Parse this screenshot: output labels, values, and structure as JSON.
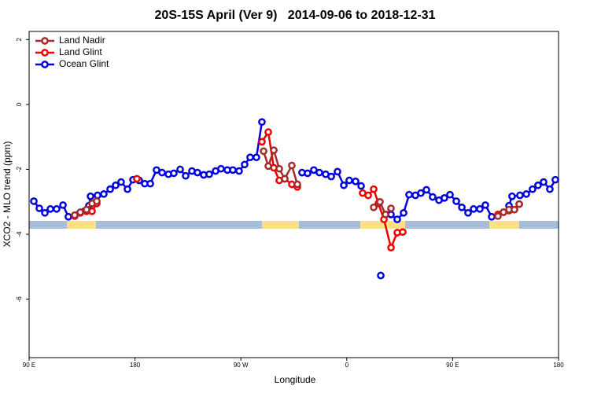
{
  "chart_data": {
    "type": "line",
    "title": "20S-15S April (Ver 9)   2014-09-06 to 2018-12-31",
    "x_label": "Longitude",
    "y_label": "XCO2 - MLO trend (ppm)",
    "xlim": [
      90,
      540
    ],
    "ylim": [
      -7.8,
      2.25
    ],
    "xticks": [
      {
        "value": 90,
        "label": "90 E"
      },
      {
        "value": 180,
        "label": "180"
      },
      {
        "value": 270,
        "label": "90 W"
      },
      {
        "value": 360,
        "label": "0"
      },
      {
        "value": 450,
        "label": "90 E"
      },
      {
        "value": 540,
        "label": "180"
      }
    ],
    "yticks": [
      2,
      0,
      -2,
      -4,
      -6
    ],
    "legend": "upper left",
    "series": [
      {
        "name": "Land Nadir",
        "color": "#a52a2a",
        "x": [
          128.8,
          133.5,
          138.8,
          143.5,
          147.5,
          null,
          289.3,
          293.3,
          298.0,
          302.6,
          307.3,
          313.3,
          318.0,
          null,
          382.9,
          388.2,
          392.9,
          397.6,
          null,
          488.5,
          493.2,
          497.9,
          502.5,
          506.6
        ],
        "values": [
          -3.41,
          -3.32,
          -3.24,
          -3.05,
          -2.98,
          null,
          -1.44,
          -1.9,
          -1.41,
          -1.98,
          -2.29,
          -1.88,
          -2.46,
          null,
          -3.17,
          -3.0,
          -3.39,
          -3.2,
          null,
          -3.44,
          -3.32,
          -3.24,
          -3.24,
          -3.07
        ]
      },
      {
        "name": "Land Glint",
        "color": "#ee0000",
        "x": [
          128.8,
          133.5,
          138.8,
          143.5,
          147.5,
          null,
          181.6,
          null,
          287.9,
          293.3,
          298.0,
          302.6,
          307.3,
          313.3,
          318.0,
          null,
          373.5,
          378.2,
          382.9,
          386.9,
          391.6,
          397.6,
          402.9,
          407.6,
          null,
          488.5,
          493.2,
          497.9,
          502.5,
          506.6
        ],
        "values": [
          -3.44,
          -3.34,
          -3.29,
          -3.29,
          -3.05,
          null,
          -2.29,
          null,
          -1.15,
          -0.85,
          -1.95,
          -2.34,
          -2.29,
          -2.46,
          -2.54,
          null,
          -2.73,
          -2.8,
          -2.61,
          -3.05,
          -3.54,
          -4.41,
          -3.95,
          -3.93,
          null,
          -3.39,
          -3.32,
          -3.27,
          -3.24,
          -3.07
        ]
      },
      {
        "name": "Ocean Glint",
        "color": "#0000dd",
        "x": [
          94.0,
          98.7,
          103.4,
          108.1,
          113.4,
          118.8,
          123.4,
          140.8,
          142.2,
          148.2,
          153.5,
          158.9,
          163.6,
          168.2,
          173.6,
          178.3,
          183.6,
          188.3,
          193.0,
          198.3,
          203.0,
          208.4,
          213.0,
          218.4,
          223.1,
          228.4,
          233.1,
          238.4,
          243.1,
          248.5,
          253.1,
          258.5,
          263.2,
          268.5,
          273.2,
          277.9,
          283.2,
          287.9,
          null,
          322.0,
          326.7,
          332.0,
          336.7,
          342.1,
          346.8,
          352.1,
          357.5,
          362.1,
          367.5,
          372.2,
          null,
          388.9,
          null,
          397.6,
          402.9,
          408.3,
          413.0,
          418.3,
          423.0,
          427.7,
          433.0,
          438.4,
          443.0,
          447.7,
          453.1,
          457.8,
          463.1,
          467.8,
          473.1,
          477.8,
          483.2,
          null,
          497.9,
          500.5,
          507.2,
          512.6,
          517.9,
          522.6,
          527.3,
          532.6,
          537.3
        ],
        "values": [
          -2.98,
          -3.2,
          -3.34,
          -3.22,
          -3.22,
          -3.1,
          -3.46,
          -3.12,
          -2.83,
          -2.8,
          -2.76,
          -2.61,
          -2.49,
          -2.39,
          -2.61,
          -2.32,
          -2.34,
          -2.44,
          -2.44,
          -2.02,
          -2.1,
          -2.15,
          -2.12,
          -2.0,
          -2.2,
          -2.05,
          -2.1,
          -2.17,
          -2.15,
          -2.05,
          -1.98,
          -2.02,
          -2.02,
          -2.05,
          -1.85,
          -1.63,
          -1.63,
          -0.54,
          null,
          -2.1,
          -2.12,
          -2.02,
          -2.1,
          -2.15,
          -2.22,
          -2.07,
          -2.49,
          -2.34,
          -2.37,
          -2.51,
          null,
          -5.27,
          null,
          -3.39,
          -3.54,
          -3.34,
          -2.78,
          -2.8,
          -2.73,
          -2.63,
          -2.85,
          -2.95,
          -2.88,
          -2.78,
          -2.98,
          -3.17,
          -3.34,
          -3.22,
          -3.22,
          -3.1,
          -3.46,
          null,
          -3.12,
          -2.83,
          -2.8,
          -2.76,
          -2.61,
          -2.49,
          -2.39,
          -2.61,
          -2.32
        ]
      }
    ]
  }
}
